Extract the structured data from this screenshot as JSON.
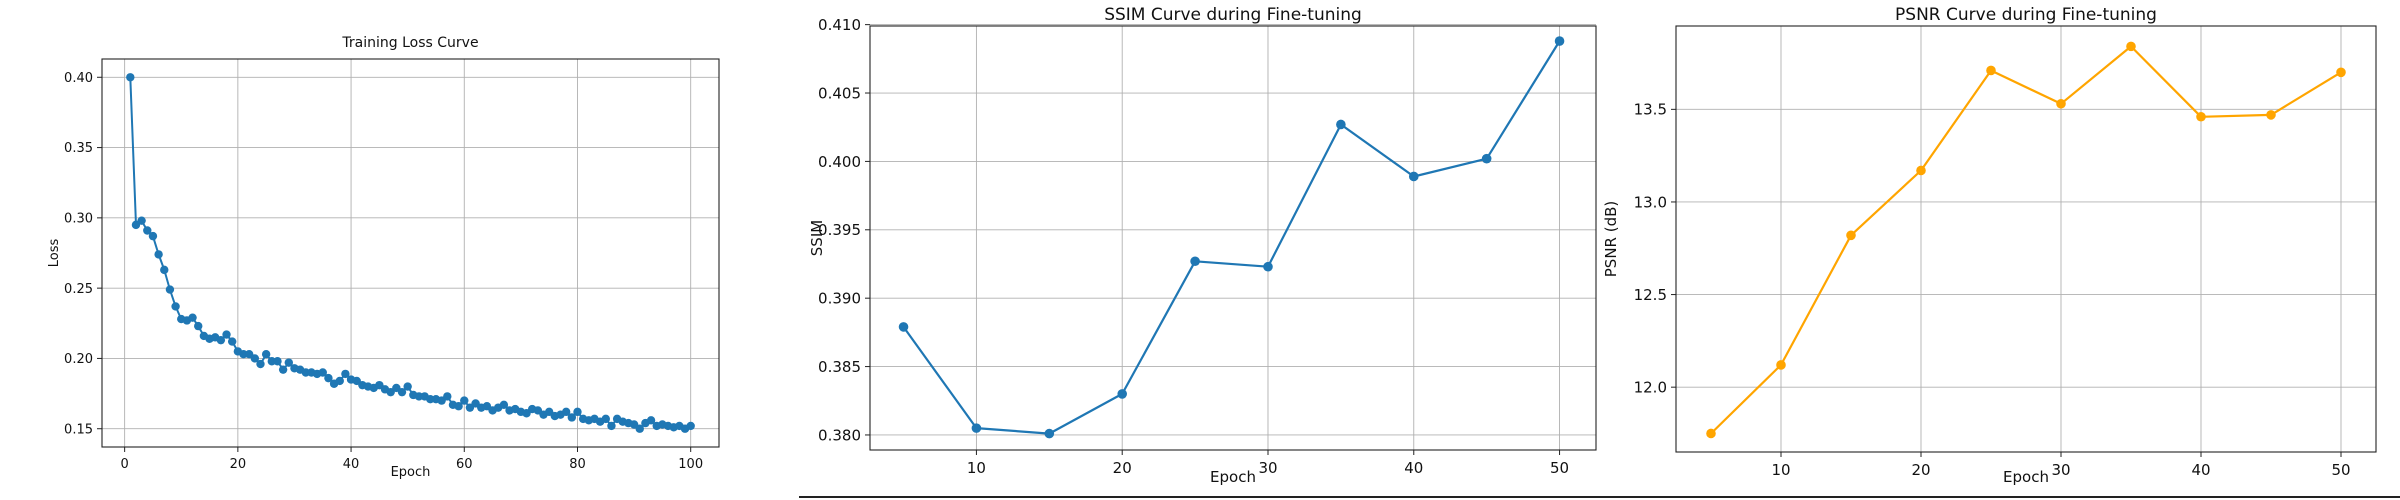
{
  "chart_data": [
    {
      "type": "line",
      "title": "Training Loss Curve",
      "xlabel": "Epoch",
      "ylabel": "Loss",
      "xlim": [
        -4.0,
        105.0
      ],
      "ylim": [
        0.137,
        0.413
      ],
      "xticks": [
        0,
        20,
        40,
        60,
        80,
        100
      ],
      "yticks": [
        0.15,
        0.2,
        0.25,
        0.3,
        0.35,
        0.4
      ],
      "yticklabels": [
        "0.15",
        "0.20",
        "0.25",
        "0.30",
        "0.35",
        "0.40"
      ],
      "grid": true,
      "color": "#1f77b4",
      "series": [
        {
          "x": [
            1,
            2,
            3,
            4,
            5,
            6,
            7,
            8,
            9,
            10,
            11,
            12,
            13,
            14,
            15,
            16,
            17,
            18,
            19,
            20,
            21,
            22,
            23,
            24,
            25,
            26,
            27,
            28,
            29,
            30,
            31,
            32,
            33,
            34,
            35,
            36,
            37,
            38,
            39,
            40,
            41,
            42,
            43,
            44,
            45,
            46,
            47,
            48,
            49,
            50,
            51,
            52,
            53,
            54,
            55,
            56,
            57,
            58,
            59,
            60,
            61,
            62,
            63,
            64,
            65,
            66,
            67,
            68,
            69,
            70,
            71,
            72,
            73,
            74,
            75,
            76,
            77,
            78,
            79,
            80,
            81,
            82,
            83,
            84,
            85,
            86,
            87,
            88,
            89,
            90,
            91,
            92,
            93,
            94,
            95,
            96,
            97,
            98,
            99,
            100
          ],
          "values": [
            0.4,
            0.295,
            0.298,
            0.291,
            0.287,
            0.274,
            0.263,
            0.249,
            0.237,
            0.228,
            0.227,
            0.229,
            0.223,
            0.216,
            0.214,
            0.215,
            0.213,
            0.217,
            0.212,
            0.205,
            0.203,
            0.203,
            0.2,
            0.196,
            0.203,
            0.198,
            0.198,
            0.192,
            0.197,
            0.193,
            0.192,
            0.19,
            0.19,
            0.189,
            0.19,
            0.186,
            0.182,
            0.184,
            0.189,
            0.185,
            0.184,
            0.181,
            0.18,
            0.179,
            0.181,
            0.178,
            0.176,
            0.179,
            0.176,
            0.18,
            0.174,
            0.173,
            0.173,
            0.171,
            0.171,
            0.17,
            0.173,
            0.167,
            0.166,
            0.17,
            0.165,
            0.168,
            0.165,
            0.166,
            0.163,
            0.165,
            0.167,
            0.163,
            0.164,
            0.162,
            0.161,
            0.164,
            0.163,
            0.16,
            0.162,
            0.159,
            0.16,
            0.162,
            0.158,
            0.162,
            0.157,
            0.156,
            0.157,
            0.155,
            0.157,
            0.152,
            0.157,
            0.155,
            0.154,
            0.153,
            0.15,
            0.154,
            0.156,
            0.152,
            0.153,
            0.152,
            0.151,
            0.152,
            0.15,
            0.152
          ]
        }
      ]
    },
    {
      "type": "line",
      "title": "SSIM Curve during Fine-tuning",
      "xlabel": "Epoch",
      "ylabel": "SSIM",
      "xlim": [
        2.7,
        52.5
      ],
      "ylim": [
        0.3789,
        0.4099
      ],
      "xticks": [
        10,
        20,
        30,
        40,
        50
      ],
      "yticks": [
        0.38,
        0.385,
        0.39,
        0.395,
        0.4,
        0.405,
        0.41
      ],
      "yticklabels": [
        "0.380",
        "0.385",
        "0.390",
        "0.395",
        "0.400",
        "0.405",
        "0.410"
      ],
      "grid": true,
      "color": "#1f77b4",
      "series": [
        {
          "x": [
            5,
            10,
            15,
            20,
            25,
            30,
            35,
            40,
            45,
            50
          ],
          "values": [
            0.3879,
            0.3805,
            0.3801,
            0.383,
            0.3927,
            0.3923,
            0.4027,
            0.3989,
            0.4002,
            0.4088
          ]
        }
      ]
    },
    {
      "type": "line",
      "title": "PSNR Curve during Fine-tuning",
      "xlabel": "Epoch",
      "ylabel": "PSNR (dB)",
      "xlim": [
        2.5,
        52.5
      ],
      "ylim": [
        11.65,
        13.95
      ],
      "xticks": [
        10,
        20,
        30,
        40,
        50
      ],
      "yticks": [
        12.0,
        12.5,
        13.0,
        13.5
      ],
      "yticklabels": [
        "12.0",
        "12.5",
        "13.0",
        "13.5"
      ],
      "grid": true,
      "color": "#ffa500",
      "series": [
        {
          "x": [
            5,
            10,
            15,
            20,
            25,
            30,
            35,
            40,
            45,
            50
          ],
          "values": [
            11.75,
            12.12,
            12.82,
            13.17,
            13.71,
            13.53,
            13.84,
            13.46,
            13.47,
            13.7
          ]
        }
      ]
    }
  ]
}
